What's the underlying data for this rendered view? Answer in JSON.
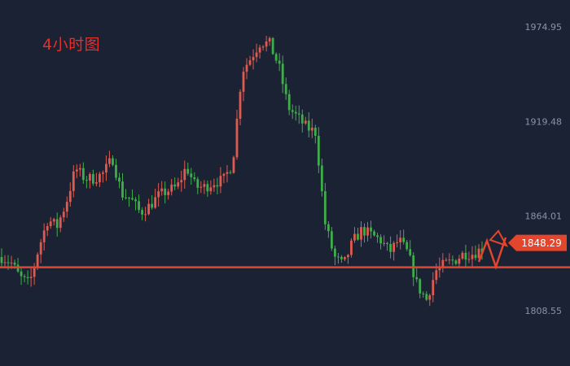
{
  "timeframe_label": "4小时图",
  "price_tag": "1848.29",
  "colors": {
    "background": "#1b2234",
    "up": "#e05a4e",
    "down": "#3fae4a",
    "level_line": "#e3452d",
    "axis_text": "#8a93a6",
    "title": "#e0312d"
  },
  "chart_data": {
    "type": "candlestick",
    "title": "4小时图",
    "y_ticks": [
      "1974.95",
      "1919.48",
      "1864.01",
      "1808.55"
    ],
    "y_tick_values": [
      1974.95,
      1919.48,
      1864.01,
      1808.55
    ],
    "ylim": [
      1796.9,
      1986.6
    ],
    "current_price": 1848.29,
    "current_price_label": "1848.29",
    "horizontal_level": 1834.0,
    "grid": false,
    "close_path": [
      1840,
      1837,
      1828,
      1824,
      1845,
      1862,
      1858,
      1872,
      1892,
      1886,
      1886,
      1889,
      1898,
      1877,
      1874,
      1866,
      1870,
      1876,
      1879,
      1881,
      1893,
      1881,
      1881,
      1884,
      1885,
      1895,
      1949,
      1957,
      1966,
      1965,
      1952,
      1928,
      1922,
      1916,
      1913,
      1860,
      1840,
      1835,
      1849,
      1856,
      1853,
      1850,
      1843,
      1850,
      1842,
      1823,
      1815,
      1832,
      1836,
      1838,
      1842,
      1842,
      1845
    ],
    "candle_count": 148
  }
}
